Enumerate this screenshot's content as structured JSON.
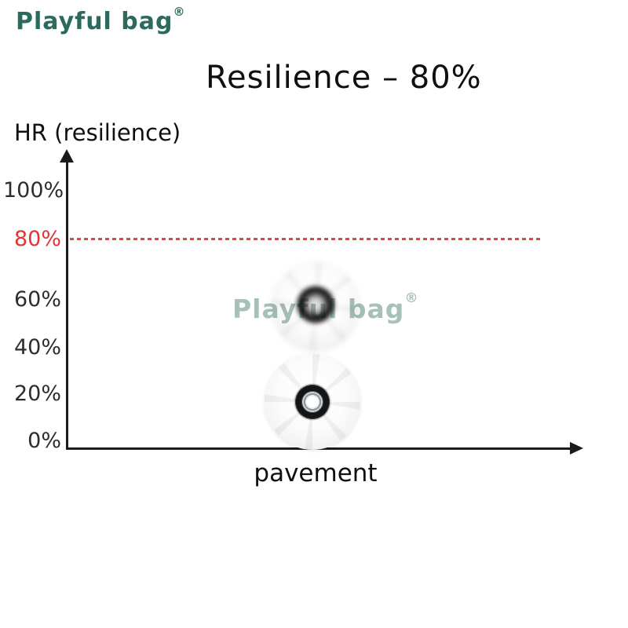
{
  "brand": {
    "logo_text": "Playful bag",
    "registered_mark": "®"
  },
  "header": {
    "title": "Resilience – 80%"
  },
  "chart": {
    "y_axis_label": "HR (resilience)",
    "x_axis_label": "pavement",
    "yticks": [
      {
        "label": "100%"
      },
      {
        "label": "80%"
      },
      {
        "label": "60%"
      },
      {
        "label": "40%"
      },
      {
        "label": "20%"
      },
      {
        "label": "0%"
      }
    ],
    "threshold_label": "80%"
  },
  "watermark": {
    "text": "Playful bag",
    "registered_mark": "®"
  },
  "colors": {
    "brand_teal": "#2d6a5e",
    "watermark_teal": "#a7c0b8",
    "threshold_red": "#e64242",
    "axis_black": "#1b1b1b",
    "tick_gray": "#2d2d2d"
  },
  "chart_data": {
    "type": "line",
    "title": "Resilience – 80%",
    "ylabel": "HR (resilience)",
    "xlabel": "pavement",
    "ytick_labels": [
      "0%",
      "20%",
      "40%",
      "60%",
      "80%",
      "100%"
    ],
    "ylim": [
      0,
      112
    ],
    "xlim_note": "no x ticks shown",
    "grid": false,
    "legend": "none",
    "series": [],
    "annotations": [
      {
        "type": "horizontal_dashed_line",
        "y": 80,
        "label": "80%",
        "color": "#e64242",
        "label_color": "#e23434"
      },
      {
        "type": "image",
        "description": "two white skate wheels with black bearings resting above the x-axis, upper one blurred"
      },
      {
        "type": "watermark",
        "text": "Playful bag®",
        "color": "#a7c0b8"
      }
    ]
  }
}
